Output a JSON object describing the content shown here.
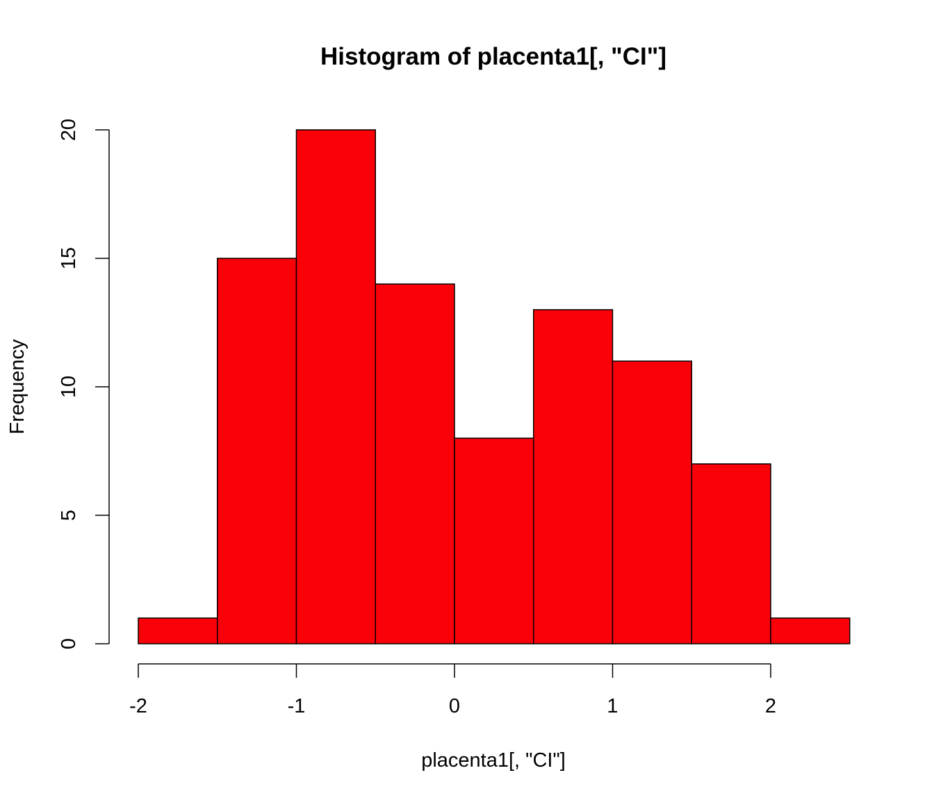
{
  "chart_data": {
    "type": "bar",
    "title": "Histogram of placenta1[, \"CI\"]",
    "xlabel": "placenta1[, \"CI\"]",
    "ylabel": "Frequency",
    "bins": [
      {
        "start": -2.0,
        "end": -1.5,
        "count": 1
      },
      {
        "start": -1.5,
        "end": -1.0,
        "count": 15
      },
      {
        "start": -1.0,
        "end": -0.5,
        "count": 20
      },
      {
        "start": -0.5,
        "end": 0.0,
        "count": 14
      },
      {
        "start": 0.0,
        "end": 0.5,
        "count": 8
      },
      {
        "start": 0.5,
        "end": 1.0,
        "count": 13
      },
      {
        "start": 1.0,
        "end": 1.5,
        "count": 11
      },
      {
        "start": 1.5,
        "end": 2.0,
        "count": 7
      },
      {
        "start": 2.0,
        "end": 2.5,
        "count": 1
      }
    ],
    "xticks": [
      -2,
      -1,
      0,
      1,
      2
    ],
    "xtick_labels": [
      "-2",
      "-1",
      "0",
      "1",
      "2"
    ],
    "yticks": [
      0,
      5,
      10,
      15,
      20
    ],
    "ytick_labels": [
      "0",
      "5",
      "10",
      "15",
      "20"
    ],
    "xlim": [
      -2.0,
      2.5
    ],
    "ylim": [
      0,
      20
    ],
    "bar_color": "#fa0008",
    "grid": false,
    "legend": "none"
  }
}
